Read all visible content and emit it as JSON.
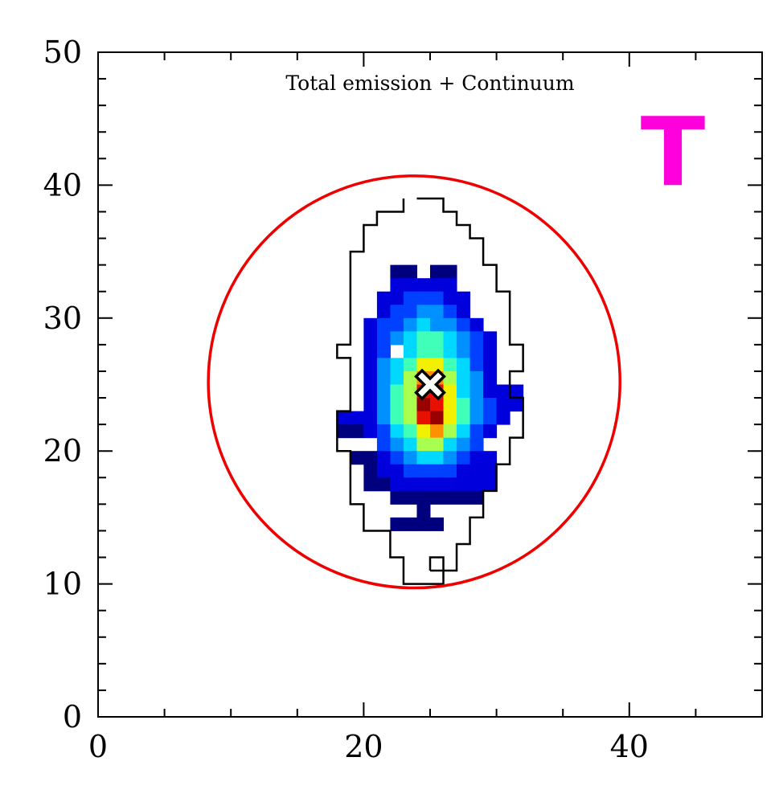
{
  "chart_data": {
    "type": "heatmap",
    "title": "Total emission + Continuum",
    "tag": {
      "text": "T",
      "color": "#ff00dd"
    },
    "xlim": [
      0,
      50
    ],
    "ylim": [
      0,
      50
    ],
    "xticks": [
      0,
      20,
      40
    ],
    "yticks": [
      0,
      10,
      20,
      30,
      40,
      50
    ],
    "xminorticks": [
      5,
      10,
      15,
      25,
      30,
      35,
      45
    ],
    "yminorticks": [
      2,
      4,
      6,
      8,
      12,
      14,
      16,
      18,
      22,
      24,
      26,
      28,
      32,
      34,
      36,
      38,
      42,
      44,
      46,
      48
    ],
    "colors": [
      "#00007f",
      "#0000dd",
      "#0040ff",
      "#0090ff",
      "#00d8ff",
      "#40ffb8",
      "#a8ff50",
      "#f0f000",
      "#ff9000",
      "#e81000",
      "#990000"
    ],
    "x": [
      18,
      19,
      20,
      21,
      22,
      23,
      24,
      25,
      26,
      27,
      28,
      29,
      30,
      31
    ],
    "y": [
      33,
      32,
      31,
      30,
      29,
      28,
      27,
      26,
      25,
      24,
      23,
      22,
      21,
      20,
      19,
      18,
      17,
      16,
      15,
      14
    ],
    "z": [
      [
        null,
        null,
        null,
        null,
        1,
        1,
        null,
        1,
        1,
        null,
        null,
        null,
        null,
        null
      ],
      [
        null,
        null,
        null,
        null,
        2,
        2,
        2,
        2,
        2,
        null,
        null,
        null,
        null,
        null
      ],
      [
        null,
        null,
        null,
        2,
        2,
        3,
        3,
        3,
        2,
        2,
        null,
        null,
        null,
        null
      ],
      [
        null,
        null,
        null,
        2,
        3,
        3,
        4,
        4,
        3,
        2,
        null,
        null,
        null,
        null
      ],
      [
        null,
        null,
        2,
        3,
        3,
        4,
        5,
        4,
        4,
        3,
        2,
        null,
        null,
        null
      ],
      [
        null,
        null,
        2,
        3,
        4,
        5,
        6,
        6,
        5,
        4,
        3,
        2,
        null,
        null
      ],
      [
        null,
        null,
        2,
        3,
        null,
        5,
        6,
        6,
        5,
        4,
        3,
        2,
        null,
        null
      ],
      [
        null,
        null,
        2,
        4,
        5,
        6,
        8,
        8,
        6,
        5,
        3,
        2,
        null,
        null
      ],
      [
        null,
        null,
        2,
        4,
        5,
        7,
        9,
        9,
        7,
        5,
        4,
        2,
        null,
        null
      ],
      [
        null,
        null,
        2,
        4,
        6,
        7,
        10,
        10,
        8,
        5,
        4,
        2,
        2,
        2
      ],
      [
        null,
        null,
        2,
        4,
        6,
        7,
        11,
        10,
        8,
        6,
        4,
        3,
        2,
        2
      ],
      [
        2,
        2,
        2,
        4,
        6,
        7,
        10,
        11,
        8,
        6,
        4,
        3,
        2,
        null
      ],
      [
        1,
        1,
        2,
        3,
        5,
        6,
        8,
        9,
        7,
        5,
        3,
        2,
        null,
        null
      ],
      [
        null,
        null,
        null,
        3,
        4,
        5,
        7,
        7,
        5,
        4,
        3,
        null,
        null,
        null
      ],
      [
        null,
        1,
        1,
        2,
        3,
        4,
        5,
        5,
        4,
        3,
        2,
        2,
        null,
        null
      ],
      [
        null,
        null,
        1,
        2,
        2,
        3,
        3,
        3,
        3,
        2,
        2,
        2,
        null,
        null
      ],
      [
        null,
        null,
        1,
        1,
        2,
        2,
        2,
        2,
        2,
        2,
        2,
        2,
        null,
        null
      ],
      [
        null,
        null,
        null,
        null,
        1,
        1,
        1,
        1,
        1,
        1,
        1,
        null,
        null,
        null
      ],
      [
        null,
        null,
        null,
        null,
        null,
        null,
        1,
        null,
        null,
        null,
        null,
        null,
        null,
        null
      ],
      [
        null,
        null,
        null,
        null,
        1,
        1,
        1,
        1,
        null,
        null,
        null,
        null,
        null,
        null
      ]
    ],
    "contours": [
      {
        "x": [
          24,
          26,
          26,
          27,
          27,
          28,
          28,
          29,
          29,
          30,
          30,
          31,
          31,
          32,
          32,
          31,
          31,
          32,
          32,
          31,
          31,
          30,
          30,
          29,
          29,
          28,
          28,
          27,
          27,
          26,
          26,
          23,
          23,
          22,
          22,
          20,
          20,
          19,
          19,
          18,
          18,
          19,
          19,
          18,
          18,
          19,
          19,
          20,
          20,
          21,
          21,
          23,
          23
        ],
        "y": [
          39,
          39,
          38,
          38,
          37,
          37,
          36,
          36,
          34,
          34,
          32,
          32,
          28,
          28,
          26,
          26,
          24,
          24,
          21,
          21,
          19,
          19,
          17,
          17,
          15,
          15,
          13,
          13,
          11,
          11,
          10,
          10,
          12,
          12,
          14,
          14,
          16,
          16,
          20,
          20,
          23,
          23,
          27,
          27,
          28,
          28,
          35,
          35,
          37,
          37,
          38,
          38,
          39
        ]
      },
      {
        "x": [
          25,
          26,
          26,
          25,
          25
        ],
        "y": [
          11,
          11,
          12,
          12,
          11
        ]
      }
    ],
    "circle": {
      "x": 23.8,
      "y": 25.2,
      "r": 15.5,
      "color": "#ee0000"
    },
    "marker": {
      "x": 25,
      "y": 25
    }
  }
}
